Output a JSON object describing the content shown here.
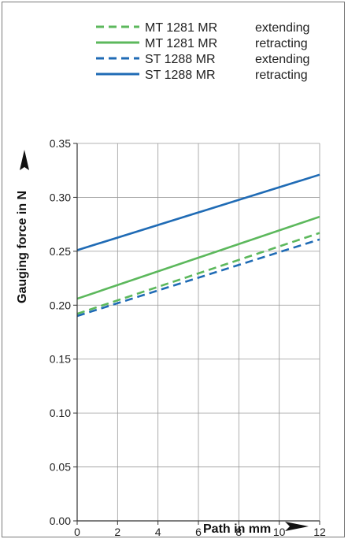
{
  "chart_data": {
    "type": "line",
    "xlabel": "Path in mm",
    "ylabel": "Gauging force in N",
    "xlim": [
      0,
      12
    ],
    "ylim": [
      0,
      0.35
    ],
    "xticks": [
      "0",
      "2",
      "4",
      "6",
      "8",
      "10",
      "12"
    ],
    "yticks": [
      "0.00",
      "0.05",
      "0.10",
      "0.15",
      "0.20",
      "0.25",
      "0.30",
      "0.35"
    ],
    "grid": true,
    "legend_position": "top-right",
    "series": [
      {
        "model": "MT 1281 MR",
        "mode": "extending",
        "color": "#5cb85c",
        "dash": "dashed",
        "x": [
          0,
          12
        ],
        "y": [
          0.192,
          0.267
        ]
      },
      {
        "model": "MT 1281 MR",
        "mode": "retracting",
        "color": "#5cb85c",
        "dash": "solid",
        "x": [
          0,
          12
        ],
        "y": [
          0.206,
          0.282
        ]
      },
      {
        "model": "ST 1288 MR",
        "mode": "extending",
        "color": "#1f6bb5",
        "dash": "dashed",
        "x": [
          0,
          12
        ],
        "y": [
          0.19,
          0.261
        ]
      },
      {
        "model": "ST 1288 MR",
        "mode": "retracting",
        "color": "#1f6bb5",
        "dash": "solid",
        "x": [
          0,
          12
        ],
        "y": [
          0.251,
          0.321
        ]
      }
    ]
  }
}
